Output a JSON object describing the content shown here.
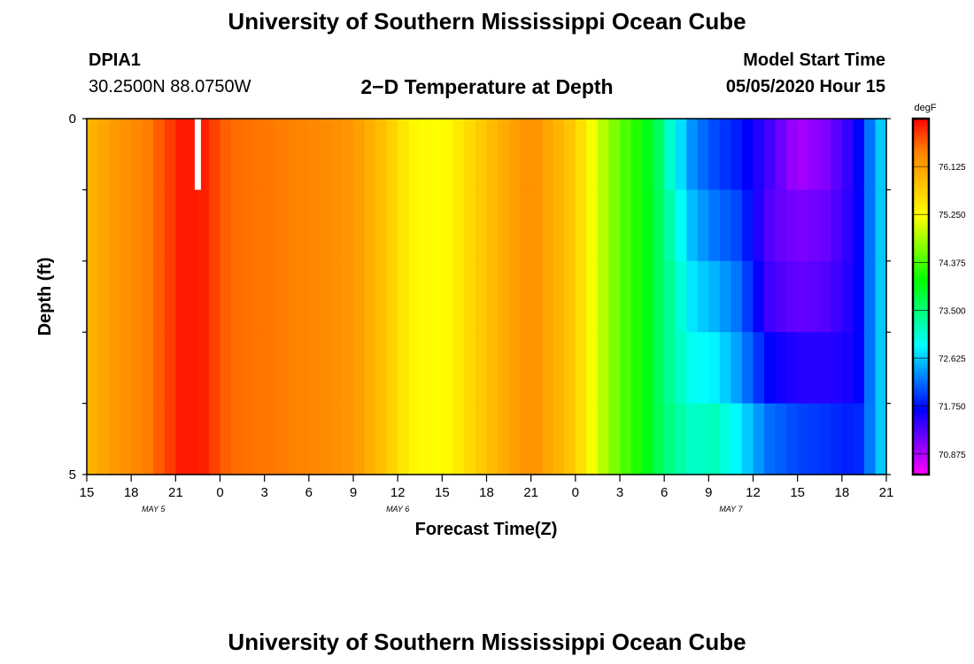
{
  "header": {
    "title": "University of Southern Mississippi Ocean Cube",
    "station_id": "DPIA1",
    "station_coords": "30.2500N 88.0750W",
    "plot_title": "2−D Temperature at Depth",
    "model_label": "Model Start Time",
    "model_time": "05/05/2020 Hour 15"
  },
  "footer": {
    "title": "University of Southern Mississippi Ocean Cube"
  },
  "chart_data": {
    "type": "heatmap",
    "title": "2−D Temperature at Depth",
    "xlabel": "Forecast Time(Z)",
    "ylabel": "Depth (ft)",
    "x_tick_labels": [
      "15",
      "18",
      "21",
      "0",
      "3",
      "6",
      "9",
      "12",
      "15",
      "18",
      "21",
      "0",
      "3",
      "6",
      "9",
      "12",
      "15",
      "18",
      "21"
    ],
    "x_hours_from_start": [
      0,
      3,
      6,
      9,
      12,
      15,
      18,
      21,
      24,
      27,
      30,
      33,
      36,
      39,
      42,
      45,
      48,
      51,
      54
    ],
    "date_labels": [
      {
        "label": "MAY 5",
        "hour": 4.5
      },
      {
        "label": "MAY 6",
        "hour": 21
      },
      {
        "label": "MAY 7",
        "hour": 43.5
      }
    ],
    "y_tick_labels": [
      "0",
      "5"
    ],
    "ylim": [
      0,
      5
    ],
    "depth_bands": 5,
    "colorbar": {
      "unit": "degF",
      "labels": [
        "76.125",
        "75.250",
        "74.375",
        "73.500",
        "72.625",
        "71.750",
        "70.875"
      ],
      "range": [
        70.5,
        77.0
      ],
      "colors": [
        "#ff00ff",
        "#8000ff",
        "#0000ff",
        "#0080ff",
        "#00ffff",
        "#00ff80",
        "#00ff00",
        "#80ff00",
        "#ffff00",
        "#ffc000",
        "#ff8000",
        "#ff0000"
      ]
    },
    "missing_marker": {
      "hour": 7.5,
      "depth_from": 0,
      "depth_to": 1
    },
    "temperature_profiles": [
      {
        "hour": 0,
        "values": [
          75.9,
          75.9,
          75.9,
          75.9,
          75.9
        ]
      },
      {
        "hour": 2,
        "values": [
          76.2,
          76.2,
          76.2,
          76.2,
          76.2
        ]
      },
      {
        "hour": 4,
        "values": [
          76.4,
          76.4,
          76.4,
          76.4,
          76.4
        ]
      },
      {
        "hour": 5.5,
        "values": [
          76.7,
          76.7,
          76.7,
          76.7,
          76.7
        ]
      },
      {
        "hour": 6.5,
        "values": [
          76.9,
          76.9,
          76.9,
          76.9,
          76.9
        ]
      },
      {
        "hour": 8,
        "values": [
          76.85,
          76.85,
          76.85,
          76.85,
          76.85
        ]
      },
      {
        "hour": 9,
        "values": [
          76.6,
          76.6,
          76.6,
          76.6,
          76.6
        ]
      },
      {
        "hour": 10,
        "values": [
          76.5,
          76.5,
          76.5,
          76.5,
          76.5
        ]
      },
      {
        "hour": 14,
        "values": [
          76.4,
          76.4,
          76.4,
          76.4,
          76.4
        ]
      },
      {
        "hour": 18,
        "values": [
          76.2,
          76.2,
          76.2,
          76.2,
          76.2
        ]
      },
      {
        "hour": 20,
        "values": [
          75.8,
          75.8,
          75.8,
          75.8,
          75.8
        ]
      },
      {
        "hour": 22,
        "values": [
          75.3,
          75.3,
          75.3,
          75.3,
          75.3
        ]
      },
      {
        "hour": 24,
        "values": [
          75.2,
          75.2,
          75.2,
          75.2,
          75.2
        ]
      },
      {
        "hour": 25.5,
        "values": [
          75.5,
          75.5,
          75.5,
          75.5,
          75.5
        ]
      },
      {
        "hour": 27,
        "values": [
          75.8,
          75.8,
          75.8,
          75.8,
          75.8
        ]
      },
      {
        "hour": 30,
        "values": [
          76.3,
          76.3,
          76.3,
          76.3,
          76.3
        ]
      },
      {
        "hour": 31,
        "values": [
          76.1,
          76.1,
          76.1,
          76.1,
          76.1
        ]
      },
      {
        "hour": 33,
        "values": [
          75.7,
          75.7,
          75.7,
          75.7,
          75.7
        ]
      },
      {
        "hour": 34.5,
        "values": [
          75.0,
          75.0,
          75.0,
          75.0,
          75.0
        ]
      },
      {
        "hour": 36,
        "values": [
          74.5,
          74.5,
          74.5,
          74.5,
          74.5
        ]
      },
      {
        "hour": 37.5,
        "values": [
          74.1,
          74.1,
          74.1,
          74.1,
          74.1
        ]
      },
      {
        "hour": 38.5,
        "values": [
          73.7,
          73.7,
          73.7,
          73.7,
          73.7
        ]
      },
      {
        "hour": 39.5,
        "values": [
          73.0,
          73.2,
          73.3,
          73.3,
          73.4
        ]
      },
      {
        "hour": 41,
        "values": [
          72.3,
          72.5,
          72.7,
          72.9,
          73.1
        ]
      },
      {
        "hour": 42.5,
        "values": [
          72.0,
          72.2,
          72.5,
          72.8,
          73.2
        ]
      },
      {
        "hour": 44,
        "values": [
          71.8,
          72.0,
          72.2,
          72.4,
          72.8
        ]
      },
      {
        "hour": 46,
        "values": [
          71.4,
          71.3,
          71.4,
          71.7,
          72.2
        ]
      },
      {
        "hour": 48,
        "values": [
          70.9,
          71.1,
          71.2,
          71.5,
          72.0
        ]
      },
      {
        "hour": 50,
        "values": [
          71.1,
          71.2,
          71.3,
          71.5,
          71.9
        ]
      },
      {
        "hour": 52,
        "values": [
          71.6,
          71.6,
          71.6,
          71.6,
          71.8
        ]
      },
      {
        "hour": 53,
        "values": [
          72.3,
          72.3,
          72.3,
          72.3,
          72.3
        ]
      },
      {
        "hour": 54,
        "values": [
          72.8,
          72.8,
          72.8,
          72.8,
          72.8
        ]
      }
    ]
  }
}
